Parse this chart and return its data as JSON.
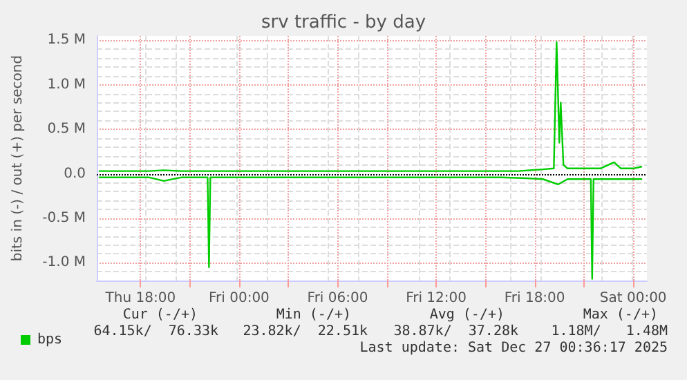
{
  "chart_data": {
    "type": "line",
    "title": "srv traffic - by day",
    "ylabel": "bits in (-) / out (+) per second",
    "xlim": [
      "2025-12-25T15:20",
      "2025-12-27T00:50"
    ],
    "xticks": [
      {
        "value": "2025-12-25T18:00",
        "label": "Thu 18:00"
      },
      {
        "value": "2025-12-25T21:00",
        "label": null
      },
      {
        "value": "2025-12-26T00:00",
        "label": "Fri 00:00"
      },
      {
        "value": "2025-12-26T03:00",
        "label": null
      },
      {
        "value": "2025-12-26T06:00",
        "label": "Fri 06:00"
      },
      {
        "value": "2025-12-26T09:00",
        "label": null
      },
      {
        "value": "2025-12-26T12:00",
        "label": "Fri 12:00"
      },
      {
        "value": "2025-12-26T15:00",
        "label": null
      },
      {
        "value": "2025-12-26T18:00",
        "label": "Fri 18:00"
      },
      {
        "value": "2025-12-26T21:00",
        "label": null
      },
      {
        "value": "2025-12-27T00:00",
        "label": "Sat 00:00"
      }
    ],
    "ylim": [
      -1200000,
      1550000
    ],
    "yticks": [
      {
        "value": -1000000,
        "label": "-1.0 M"
      },
      {
        "value": -500000,
        "label": "-0.5 M"
      },
      {
        "value": 0,
        "label": "0.0"
      },
      {
        "value": 500000,
        "label": "0.5 M"
      },
      {
        "value": 1000000,
        "label": "1.0 M"
      },
      {
        "value": 1500000,
        "label": "1.5 M"
      }
    ],
    "grid": true,
    "legend": "bottom left",
    "marker": "none",
    "line_style": "solid",
    "ref_lines": [
      {
        "axis": "y",
        "value": 0,
        "label": null,
        "color": "#000000",
        "line_style": "dotted"
      }
    ],
    "series": [
      {
        "name": "bps",
        "color": "#00cc00",
        "x": [
          "2025-12-25T15:30",
          "2025-12-25T16:30",
          "2025-12-25T17:30",
          "2025-12-25T18:30",
          "2025-12-25T19:25",
          "2025-12-25T20:30",
          "2025-12-25T21:30",
          "2025-12-25T22:30",
          "2025-12-25T23:30",
          "2025-12-26T00:30",
          "2025-12-26T02:00",
          "2025-12-26T03:30",
          "2025-12-26T05:00",
          "2025-12-26T06:30",
          "2025-12-26T08:00",
          "2025-12-26T09:30",
          "2025-12-26T11:00",
          "2025-12-26T12:30",
          "2025-12-26T14:00",
          "2025-12-26T15:30",
          "2025-12-26T17:00",
          "2025-12-26T18:30",
          "2025-12-26T19:10",
          "2025-12-26T19:20",
          "2025-12-26T19:30",
          "2025-12-26T19:35",
          "2025-12-26T19:45",
          "2025-12-26T20:00",
          "2025-12-26T21:00",
          "2025-12-26T22:00",
          "2025-12-26T22:50",
          "2025-12-26T23:15",
          "2025-12-27T00:00",
          "2025-12-27T00:30"
        ],
        "values": [
          30000,
          30000,
          30000,
          30000,
          40000,
          30000,
          30000,
          30000,
          30000,
          30000,
          30000,
          30000,
          30000,
          30000,
          30000,
          30000,
          30000,
          30000,
          30000,
          30000,
          30000,
          50000,
          60000,
          1480000,
          350000,
          800000,
          100000,
          60000,
          60000,
          60000,
          130000,
          60000,
          60000,
          80000
        ]
      },
      {
        "color": "#00cc00",
        "x": [
          "2025-12-25T15:30",
          "2025-12-25T16:30",
          "2025-12-25T17:30",
          "2025-12-25T18:30",
          "2025-12-25T19:25",
          "2025-12-25T20:30",
          "2025-12-25T21:30",
          "2025-12-25T22:05",
          "2025-12-25T22:10",
          "2025-12-25T22:15",
          "2025-12-25T23:30",
          "2025-12-26T01:00",
          "2025-12-26T02:30",
          "2025-12-26T04:00",
          "2025-12-26T05:30",
          "2025-12-26T07:00",
          "2025-12-26T08:30",
          "2025-12-26T10:00",
          "2025-12-26T11:30",
          "2025-12-26T13:00",
          "2025-12-26T14:30",
          "2025-12-26T16:00",
          "2025-12-26T17:30",
          "2025-12-26T18:30",
          "2025-12-26T19:25",
          "2025-12-26T20:00",
          "2025-12-26T21:00",
          "2025-12-26T21:25",
          "2025-12-26T21:30",
          "2025-12-26T21:35",
          "2025-12-26T22:30",
          "2025-12-26T23:30",
          "2025-12-27T00:30"
        ],
        "values": [
          -40000,
          -40000,
          -40000,
          -40000,
          -80000,
          -40000,
          -40000,
          -40000,
          -1050000,
          -40000,
          -40000,
          -40000,
          -40000,
          -40000,
          -40000,
          -40000,
          -40000,
          -40000,
          -40000,
          -40000,
          -40000,
          -40000,
          -50000,
          -60000,
          -120000,
          -60000,
          -60000,
          -60000,
          -1180000,
          -60000,
          -60000,
          -60000,
          -60000
        ]
      }
    ],
    "annotations": [
      "Cur (-/+)",
      "Min (-/+)",
      "Avg (-/+)",
      "Max (-/+)",
      "64.15k/  76.33k",
      "23.82k/  22.51k",
      "38.87k/  37.28k",
      "1.18M/   1.48M",
      "Last update: Sat Dec 27 00:36:17 2025"
    ]
  }
}
